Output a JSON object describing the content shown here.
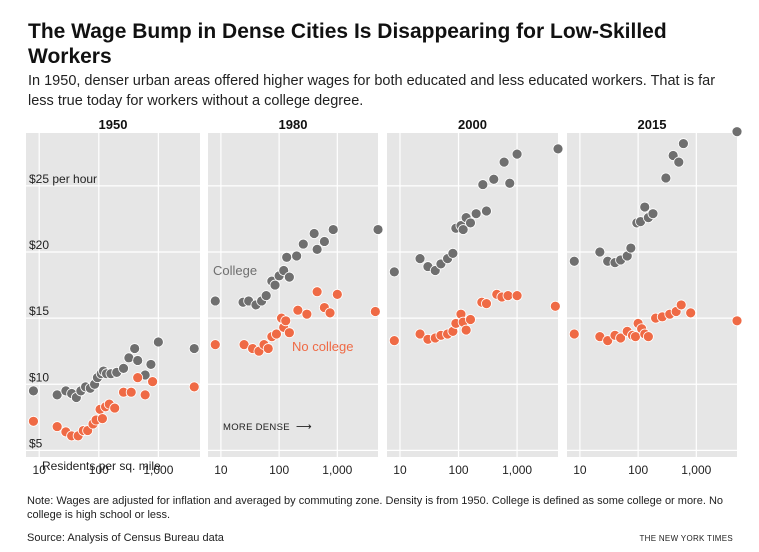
{
  "header": {
    "title": "The Wage Bump in Dense Cities Is Disappearing for Low-Skilled Workers",
    "subtitle": "In 1950, denser urban areas offered higher wages for both educated and less educated workers. That is far less true today for workers without a college degree."
  },
  "footer": {
    "note": "Note: Wages are adjusted for inflation and averaged by commuting zone. Density is from 1950. College is defined as some college or more. No college is high school or less.",
    "source": "Source: Analysis of Census Bureau data",
    "credit": "THE NEW YORK TIMES"
  },
  "colors": {
    "college": "#6f6f6f",
    "no_college": "#ef6a45",
    "panel_bg": "#e6e6e6",
    "grid": "#ffffff"
  },
  "chart_data": {
    "type": "scatter",
    "xscale": "log",
    "xlim": [
      6,
      5000
    ],
    "ylim": [
      4.5,
      29
    ],
    "xlabel": "Residents per sq. mile",
    "x_ticks": [
      10,
      100,
      1000
    ],
    "x_tick_labels": [
      "10",
      "100",
      "1,000"
    ],
    "y_ticks": [
      5,
      10,
      15,
      20,
      25
    ],
    "y_tick_labels": [
      "$5",
      "$10",
      "$15",
      "$20",
      "$25 per hour"
    ],
    "annotation_dense": "MORE DENSE",
    "annotation_dense_arrow": "⟶",
    "panels": [
      {
        "title": "1950",
        "series": [
          {
            "name": "College",
            "points": [
              [
                8,
                9.5
              ],
              [
                20,
                9.2
              ],
              [
                28,
                9.5
              ],
              [
                35,
                9.3
              ],
              [
                42,
                9.0
              ],
              [
                50,
                9.5
              ],
              [
                60,
                9.8
              ],
              [
                72,
                9.7
              ],
              [
                85,
                10.0
              ],
              [
                95,
                10.5
              ],
              [
                110,
                10.8
              ],
              [
                120,
                11.0
              ],
              [
                135,
                10.8
              ],
              [
                160,
                10.8
              ],
              [
                200,
                10.9
              ],
              [
                260,
                11.2
              ],
              [
                320,
                12.0
              ],
              [
                400,
                12.7
              ],
              [
                450,
                11.8
              ],
              [
                600,
                10.7
              ],
              [
                750,
                11.5
              ],
              [
                1000,
                13.2
              ],
              [
                4000,
                12.7
              ]
            ]
          },
          {
            "name": "No college",
            "points": [
              [
                8,
                7.2
              ],
              [
                20,
                6.8
              ],
              [
                28,
                6.4
              ],
              [
                35,
                6.1
              ],
              [
                45,
                6.1
              ],
              [
                55,
                6.5
              ],
              [
                65,
                6.5
              ],
              [
                80,
                7.0
              ],
              [
                90,
                7.3
              ],
              [
                105,
                8.1
              ],
              [
                115,
                7.4
              ],
              [
                130,
                8.3
              ],
              [
                150,
                8.5
              ],
              [
                185,
                8.2
              ],
              [
                260,
                9.4
              ],
              [
                350,
                9.4
              ],
              [
                450,
                10.5
              ],
              [
                600,
                9.2
              ],
              [
                800,
                10.2
              ],
              [
                4000,
                9.8
              ]
            ]
          }
        ]
      },
      {
        "title": "1980",
        "series": [
          {
            "name": "College",
            "points": [
              [
                8,
                16.3
              ],
              [
                24,
                16.2
              ],
              [
                30,
                16.3
              ],
              [
                40,
                16.0
              ],
              [
                50,
                16.3
              ],
              [
                60,
                16.7
              ],
              [
                75,
                17.8
              ],
              [
                85,
                17.5
              ],
              [
                100,
                18.2
              ],
              [
                120,
                18.6
              ],
              [
                135,
                19.6
              ],
              [
                150,
                18.1
              ],
              [
                200,
                19.7
              ],
              [
                260,
                20.6
              ],
              [
                400,
                21.4
              ],
              [
                450,
                20.2
              ],
              [
                600,
                20.8
              ],
              [
                850,
                21.7
              ],
              [
                5000,
                21.7
              ]
            ]
          },
          {
            "name": "No college",
            "points": [
              [
                8,
                13.0
              ],
              [
                25,
                13.0
              ],
              [
                35,
                12.7
              ],
              [
                45,
                12.5
              ],
              [
                55,
                13.0
              ],
              [
                65,
                12.7
              ],
              [
                75,
                13.6
              ],
              [
                90,
                13.8
              ],
              [
                110,
                15.0
              ],
              [
                120,
                14.3
              ],
              [
                130,
                14.8
              ],
              [
                150,
                13.9
              ],
              [
                210,
                15.6
              ],
              [
                300,
                15.3
              ],
              [
                450,
                17.0
              ],
              [
                600,
                15.8
              ],
              [
                750,
                15.4
              ],
              [
                1000,
                16.8
              ],
              [
                4500,
                15.5
              ]
            ]
          }
        ]
      },
      {
        "title": "2000",
        "series": [
          {
            "name": "College",
            "points": [
              [
                8,
                18.5
              ],
              [
                22,
                19.5
              ],
              [
                30,
                18.9
              ],
              [
                40,
                18.6
              ],
              [
                50,
                19.1
              ],
              [
                65,
                19.5
              ],
              [
                80,
                19.9
              ],
              [
                90,
                21.8
              ],
              [
                110,
                22.0
              ],
              [
                120,
                21.7
              ],
              [
                135,
                22.6
              ],
              [
                160,
                22.2
              ],
              [
                200,
                22.9
              ],
              [
                260,
                25.1
              ],
              [
                300,
                23.1
              ],
              [
                400,
                25.5
              ],
              [
                600,
                26.8
              ],
              [
                750,
                25.2
              ],
              [
                1000,
                27.4
              ],
              [
                5000,
                27.8
              ]
            ]
          },
          {
            "name": "No college",
            "points": [
              [
                8,
                13.3
              ],
              [
                22,
                13.8
              ],
              [
                30,
                13.4
              ],
              [
                40,
                13.5
              ],
              [
                50,
                13.7
              ],
              [
                65,
                13.8
              ],
              [
                80,
                14.0
              ],
              [
                90,
                14.6
              ],
              [
                110,
                15.3
              ],
              [
                120,
                14.7
              ],
              [
                135,
                14.1
              ],
              [
                160,
                14.9
              ],
              [
                250,
                16.2
              ],
              [
                300,
                16.1
              ],
              [
                450,
                16.8
              ],
              [
                550,
                16.6
              ],
              [
                700,
                16.7
              ],
              [
                1000,
                16.7
              ],
              [
                4500,
                15.9
              ]
            ]
          }
        ]
      },
      {
        "title": "2015",
        "series": [
          {
            "name": "College",
            "points": [
              [
                8,
                19.3
              ],
              [
                22,
                20.0
              ],
              [
                30,
                19.3
              ],
              [
                40,
                19.2
              ],
              [
                50,
                19.4
              ],
              [
                65,
                19.7
              ],
              [
                75,
                20.3
              ],
              [
                95,
                22.2
              ],
              [
                110,
                22.3
              ],
              [
                130,
                23.4
              ],
              [
                150,
                22.6
              ],
              [
                180,
                22.9
              ],
              [
                300,
                25.6
              ],
              [
                400,
                27.3
              ],
              [
                500,
                26.8
              ],
              [
                600,
                28.2
              ],
              [
                5000,
                29.1
              ]
            ]
          },
          {
            "name": "No college",
            "points": [
              [
                8,
                13.8
              ],
              [
                22,
                13.6
              ],
              [
                30,
                13.3
              ],
              [
                40,
                13.7
              ],
              [
                50,
                13.5
              ],
              [
                65,
                14.0
              ],
              [
                80,
                13.7
              ],
              [
                90,
                13.6
              ],
              [
                100,
                14.6
              ],
              [
                115,
                14.2
              ],
              [
                130,
                13.8
              ],
              [
                150,
                13.6
              ],
              [
                200,
                15.0
              ],
              [
                260,
                15.1
              ],
              [
                350,
                15.3
              ],
              [
                450,
                15.5
              ],
              [
                550,
                16.0
              ],
              [
                800,
                15.4
              ],
              [
                5000,
                14.8
              ]
            ]
          }
        ]
      }
    ]
  }
}
